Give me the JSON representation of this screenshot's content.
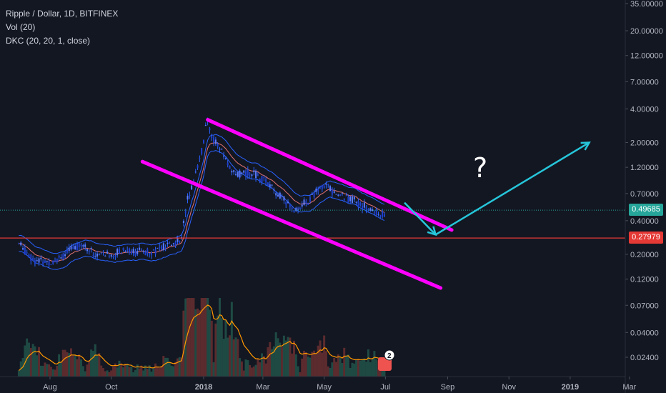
{
  "legend": {
    "symbol_line": "Ripple / Dollar, 1D, BITFINEX",
    "volume_line": "Vol (20)",
    "dkc_line": "DKC (20, 20, 1, close)"
  },
  "price_labels": {
    "current": "0.49685",
    "horizontal": "0.27979"
  },
  "colors": {
    "background": "#131722",
    "current_price": "#26a69a",
    "horizontal_line": "#e53935",
    "channel": "#ff00ff",
    "arrow": "#26c6da",
    "price_series": "#2962ff",
    "volume_ma": "#ff9800"
  },
  "annotation_text": "?",
  "alert_badge": "2",
  "chart_data": {
    "type": "line",
    "title": "Ripple / Dollar, 1D, BITFINEX",
    "y_scale": "log",
    "y_ticks": [
      35,
      20,
      12,
      7,
      4,
      2,
      1.2,
      0.7,
      0.4,
      0.2,
      0.12,
      0.07,
      0.04,
      0.024
    ],
    "y_tick_labels": [
      "35.00000",
      "20.00000",
      "12.00000",
      "7.00000",
      "4.00000",
      "2.00000",
      "1.20000",
      "0.70000",
      "0.40000",
      "0.20000",
      "0.12000",
      "0.07000",
      "0.04000",
      "0.02400"
    ],
    "x_ticks": [
      "Aug",
      "Oct",
      "2018",
      "Mar",
      "May",
      "Jul",
      "Sep",
      "Nov",
      "2019",
      "Mar"
    ],
    "current_price": 0.49685,
    "horizontal_level": 0.27979,
    "series": [
      {
        "name": "Ripple / Dollar",
        "x": [
          "2017-07-01",
          "2017-07-15",
          "2017-08-01",
          "2017-08-15",
          "2017-09-01",
          "2017-09-15",
          "2017-10-01",
          "2017-10-15",
          "2017-11-01",
          "2017-11-15",
          "2017-12-01",
          "2017-12-10",
          "2017-12-15",
          "2017-12-20",
          "2018-01-01",
          "2018-01-04",
          "2018-01-10",
          "2018-01-20",
          "2018-02-01",
          "2018-02-15",
          "2018-03-01",
          "2018-03-15",
          "2018-04-01",
          "2018-04-15",
          "2018-05-01",
          "2018-05-15",
          "2018-06-01",
          "2018-06-15",
          "2018-07-01"
        ],
        "values": [
          0.25,
          0.18,
          0.17,
          0.2,
          0.25,
          0.2,
          0.2,
          0.22,
          0.21,
          0.22,
          0.25,
          0.27,
          0.6,
          0.8,
          2.0,
          3.2,
          2.2,
          1.6,
          1.0,
          1.1,
          0.95,
          0.7,
          0.5,
          0.6,
          0.85,
          0.68,
          0.6,
          0.5,
          0.45
        ]
      }
    ],
    "channel_lines": [
      {
        "from": {
          "x": "2018-01-05",
          "y": 3.2
        },
        "to": {
          "x": "2018-09-05",
          "y": 0.33
        }
      },
      {
        "from": {
          "x": "2017-11-01",
          "y": 1.35
        },
        "to": {
          "x": "2018-08-25",
          "y": 0.1
        }
      }
    ],
    "projection_arrows": [
      {
        "from": {
          "x": "2018-07-20",
          "y": 0.58
        },
        "to": {
          "x": "2018-08-20",
          "y": 0.3
        }
      },
      {
        "from": {
          "x": "2018-08-20",
          "y": 0.3
        },
        "to": {
          "x": "2019-01-20",
          "y": 2.0
        }
      }
    ]
  }
}
